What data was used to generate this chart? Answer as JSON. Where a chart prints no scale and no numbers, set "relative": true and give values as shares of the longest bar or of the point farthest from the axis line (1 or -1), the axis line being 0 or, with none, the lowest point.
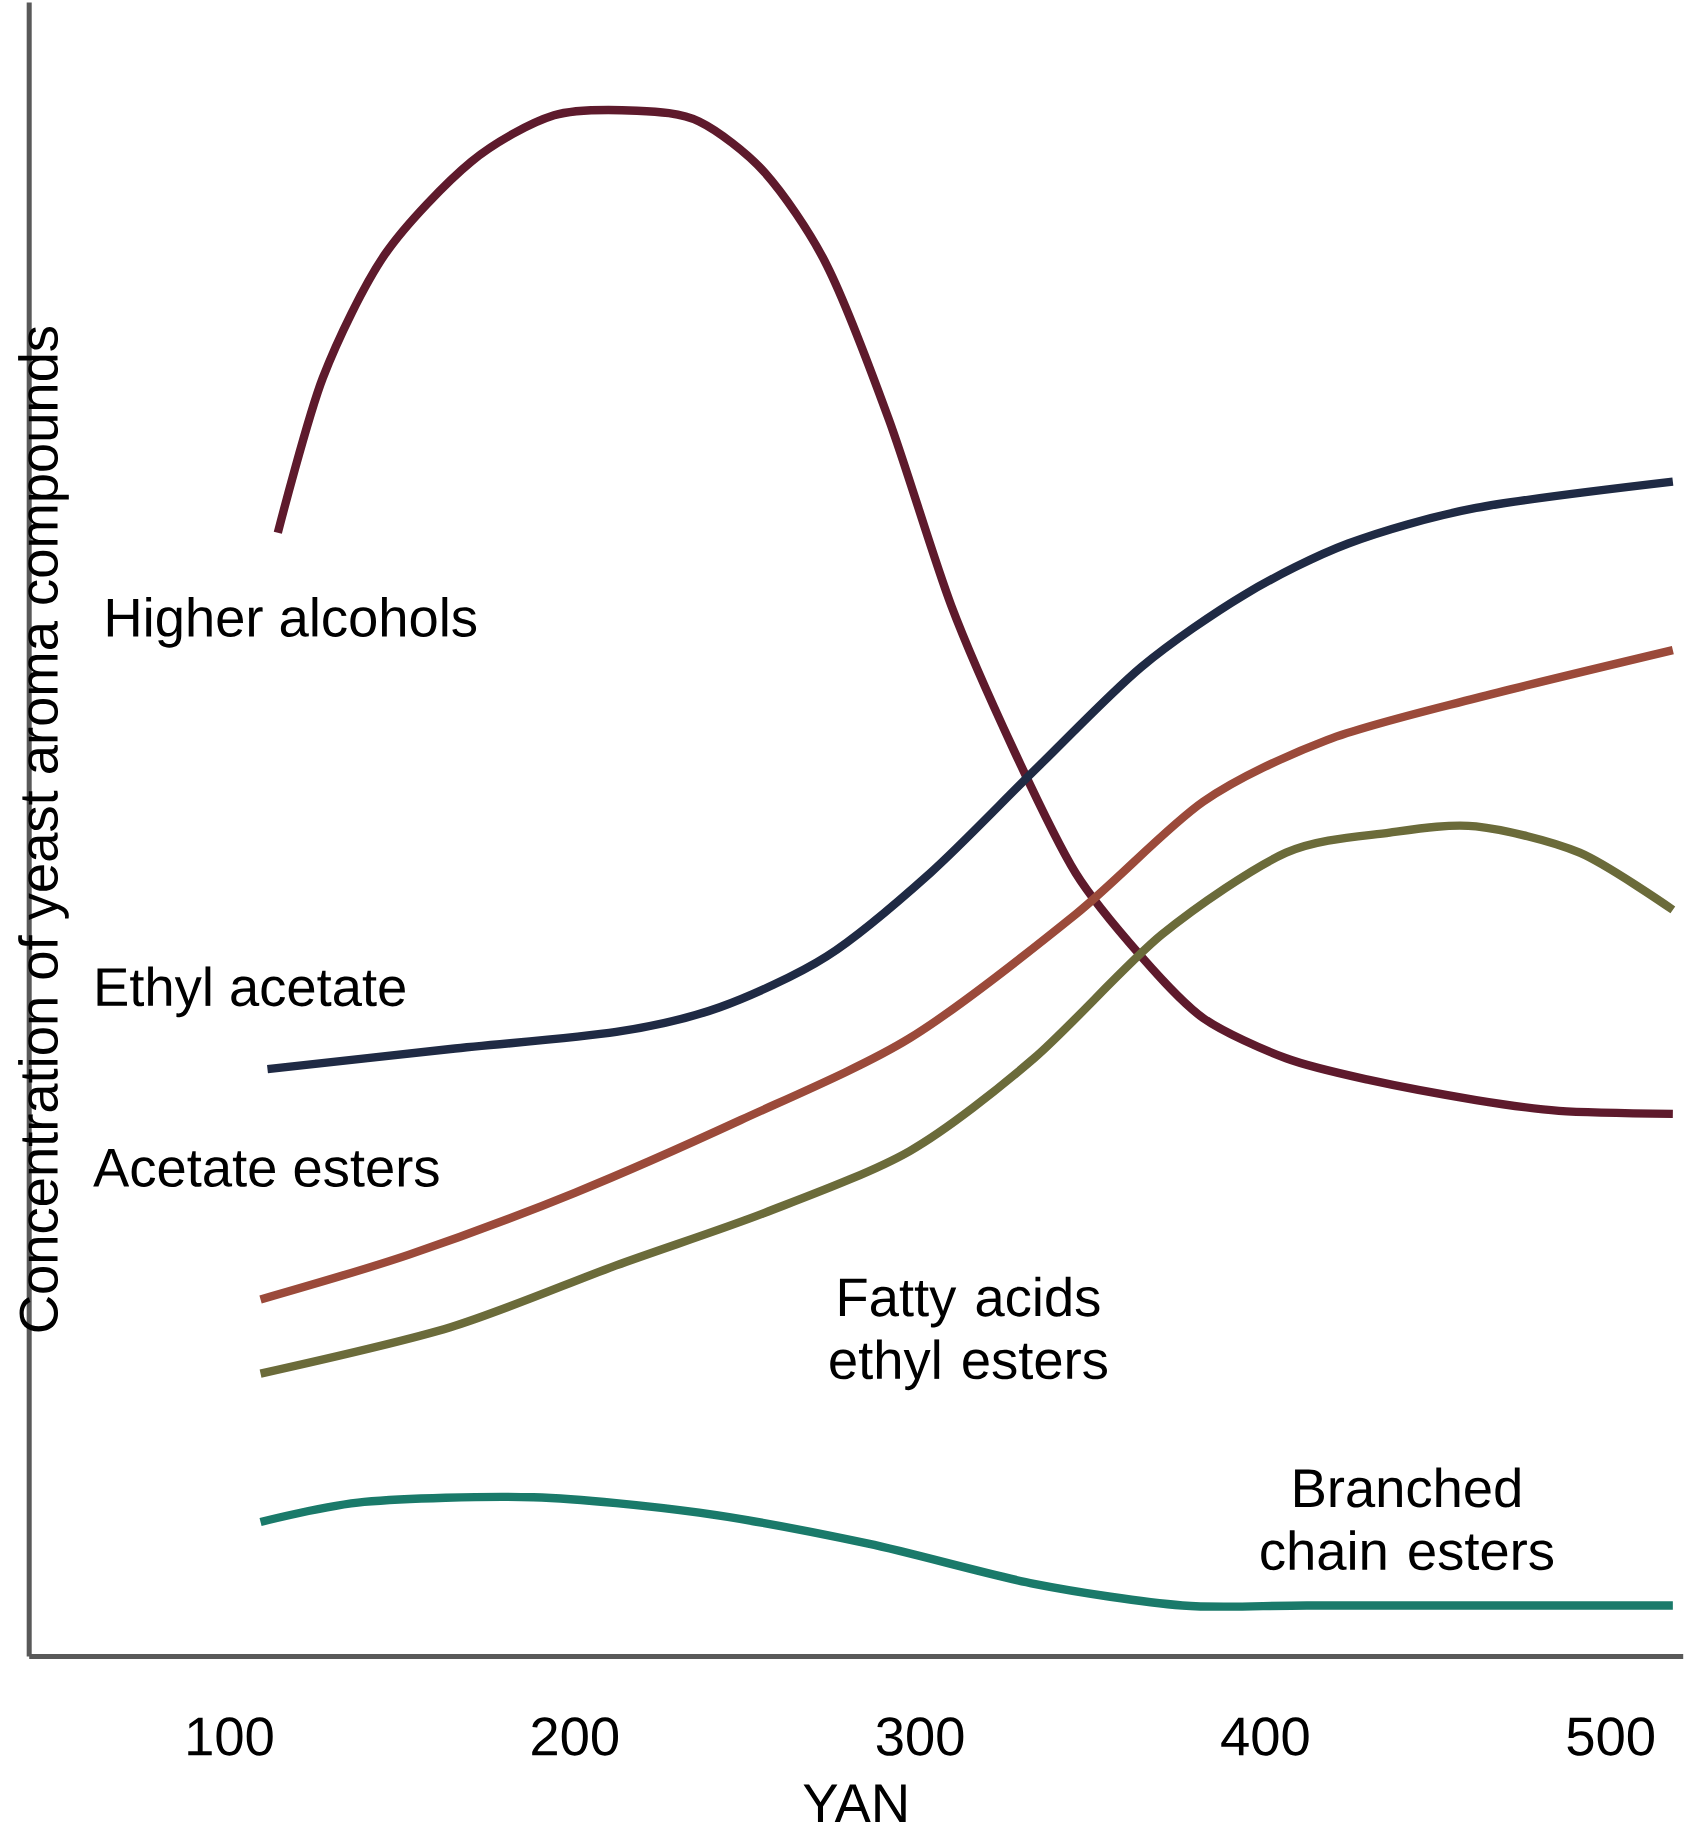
{
  "chart_data": {
    "type": "line",
    "relative": true,
    "xlabel": "YAN",
    "ylabel": "Concentration of yeast aroma compounds",
    "xlim": [
      42,
      521
    ],
    "xticks": [
      100,
      200,
      300,
      400,
      500
    ],
    "marker": "none",
    "line_style": "solid",
    "series": [
      {
        "name": "Higher alcohols",
        "color": "#5e1a2c",
        "x": [
          114,
          127,
          145,
          170,
          194,
          218,
          236,
          255,
          273,
          291,
          309,
          327,
          345,
          364,
          382,
          406,
          430,
          461,
          485,
          518
        ],
        "values": [
          0.727,
          0.827,
          0.907,
          0.967,
          0.997,
          1.0,
          0.993,
          0.96,
          0.9,
          0.8,
          0.68,
          0.587,
          0.507,
          0.453,
          0.413,
          0.387,
          0.373,
          0.36,
          0.353,
          0.351
        ]
      },
      {
        "name": "Ethyl acetate",
        "color": "#1f2a44",
        "x": [
          111,
          164,
          212,
          242,
          273,
          303,
          333,
          364,
          394,
          424,
          461,
          518
        ],
        "values": [
          0.38,
          0.393,
          0.404,
          0.42,
          0.453,
          0.507,
          0.573,
          0.64,
          0.687,
          0.72,
          0.743,
          0.76
        ]
      },
      {
        "name": "Acetate esters",
        "color": "#9b4a3a",
        "x": [
          109,
          152,
          200,
          248,
          297,
          345,
          382,
          418,
          461,
          518
        ],
        "values": [
          0.231,
          0.26,
          0.3,
          0.347,
          0.4,
          0.48,
          0.553,
          0.593,
          0.62,
          0.651
        ]
      },
      {
        "name": "Fatty acids ethyl esters",
        "color": "#6b6b3a",
        "x": [
          109,
          164,
          212,
          255,
          297,
          333,
          370,
          406,
          436,
          461,
          491,
          518
        ],
        "values": [
          0.183,
          0.213,
          0.253,
          0.287,
          0.327,
          0.387,
          0.467,
          0.52,
          0.533,
          0.537,
          0.52,
          0.483
        ]
      },
      {
        "name": "Branched chain esters",
        "color": "#1a7a6a",
        "x": [
          109,
          139,
          188,
          236,
          285,
          333,
          376,
          412,
          467,
          518
        ],
        "values": [
          0.087,
          0.1,
          0.103,
          0.093,
          0.073,
          0.047,
          0.033,
          0.033,
          0.033,
          0.033
        ]
      }
    ]
  }
}
